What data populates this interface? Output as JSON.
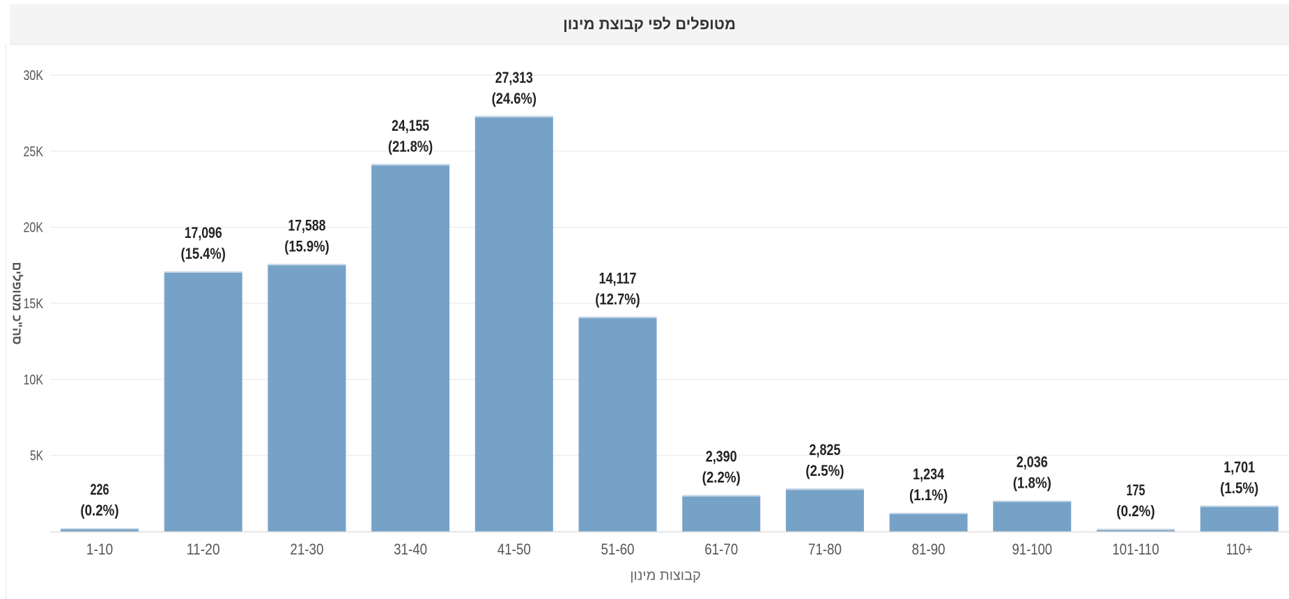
{
  "chart_data": {
    "type": "bar",
    "title": "מטופלים לפי קבוצת מינון",
    "xlabel": "קבוצות מינון",
    "ylabel": "סה\"כ מטופלים",
    "categories": [
      "1-10",
      "11-20",
      "21-30",
      "31-40",
      "41-50",
      "51-60",
      "61-70",
      "71-80",
      "81-90",
      "91-100",
      "101-110",
      "110+"
    ],
    "values": [
      226,
      17096,
      17588,
      24155,
      27313,
      14117,
      2390,
      2825,
      1234,
      2036,
      175,
      1701
    ],
    "value_labels": [
      "226",
      "17,096",
      "17,588",
      "24,155",
      "27,313",
      "14,117",
      "2,390",
      "2,825",
      "1,234",
      "2,036",
      "175",
      "1,701"
    ],
    "percent_labels": [
      "(0.2%)",
      "(15.4%)",
      "(15.9%)",
      "(21.8%)",
      "(24.6%)",
      "(12.7%)",
      "(2.2%)",
      "(2.5%)",
      "(1.1%)",
      "(1.8%)",
      "(0.2%)",
      "(1.5%)"
    ],
    "yticks": [
      5000,
      10000,
      15000,
      20000,
      25000,
      30000
    ],
    "ytick_labels": [
      "5K",
      "10K",
      "15K",
      "20K",
      "25K",
      "30K"
    ],
    "ylim": [
      0,
      30000
    ],
    "grid": true,
    "legend": "none",
    "colors": {
      "bar": "#76a2c7",
      "bar_top": "#c9d8e7",
      "grid": "#eeeeee",
      "axis": "#dddddd",
      "label": "#222222",
      "tick": "#555555"
    }
  }
}
